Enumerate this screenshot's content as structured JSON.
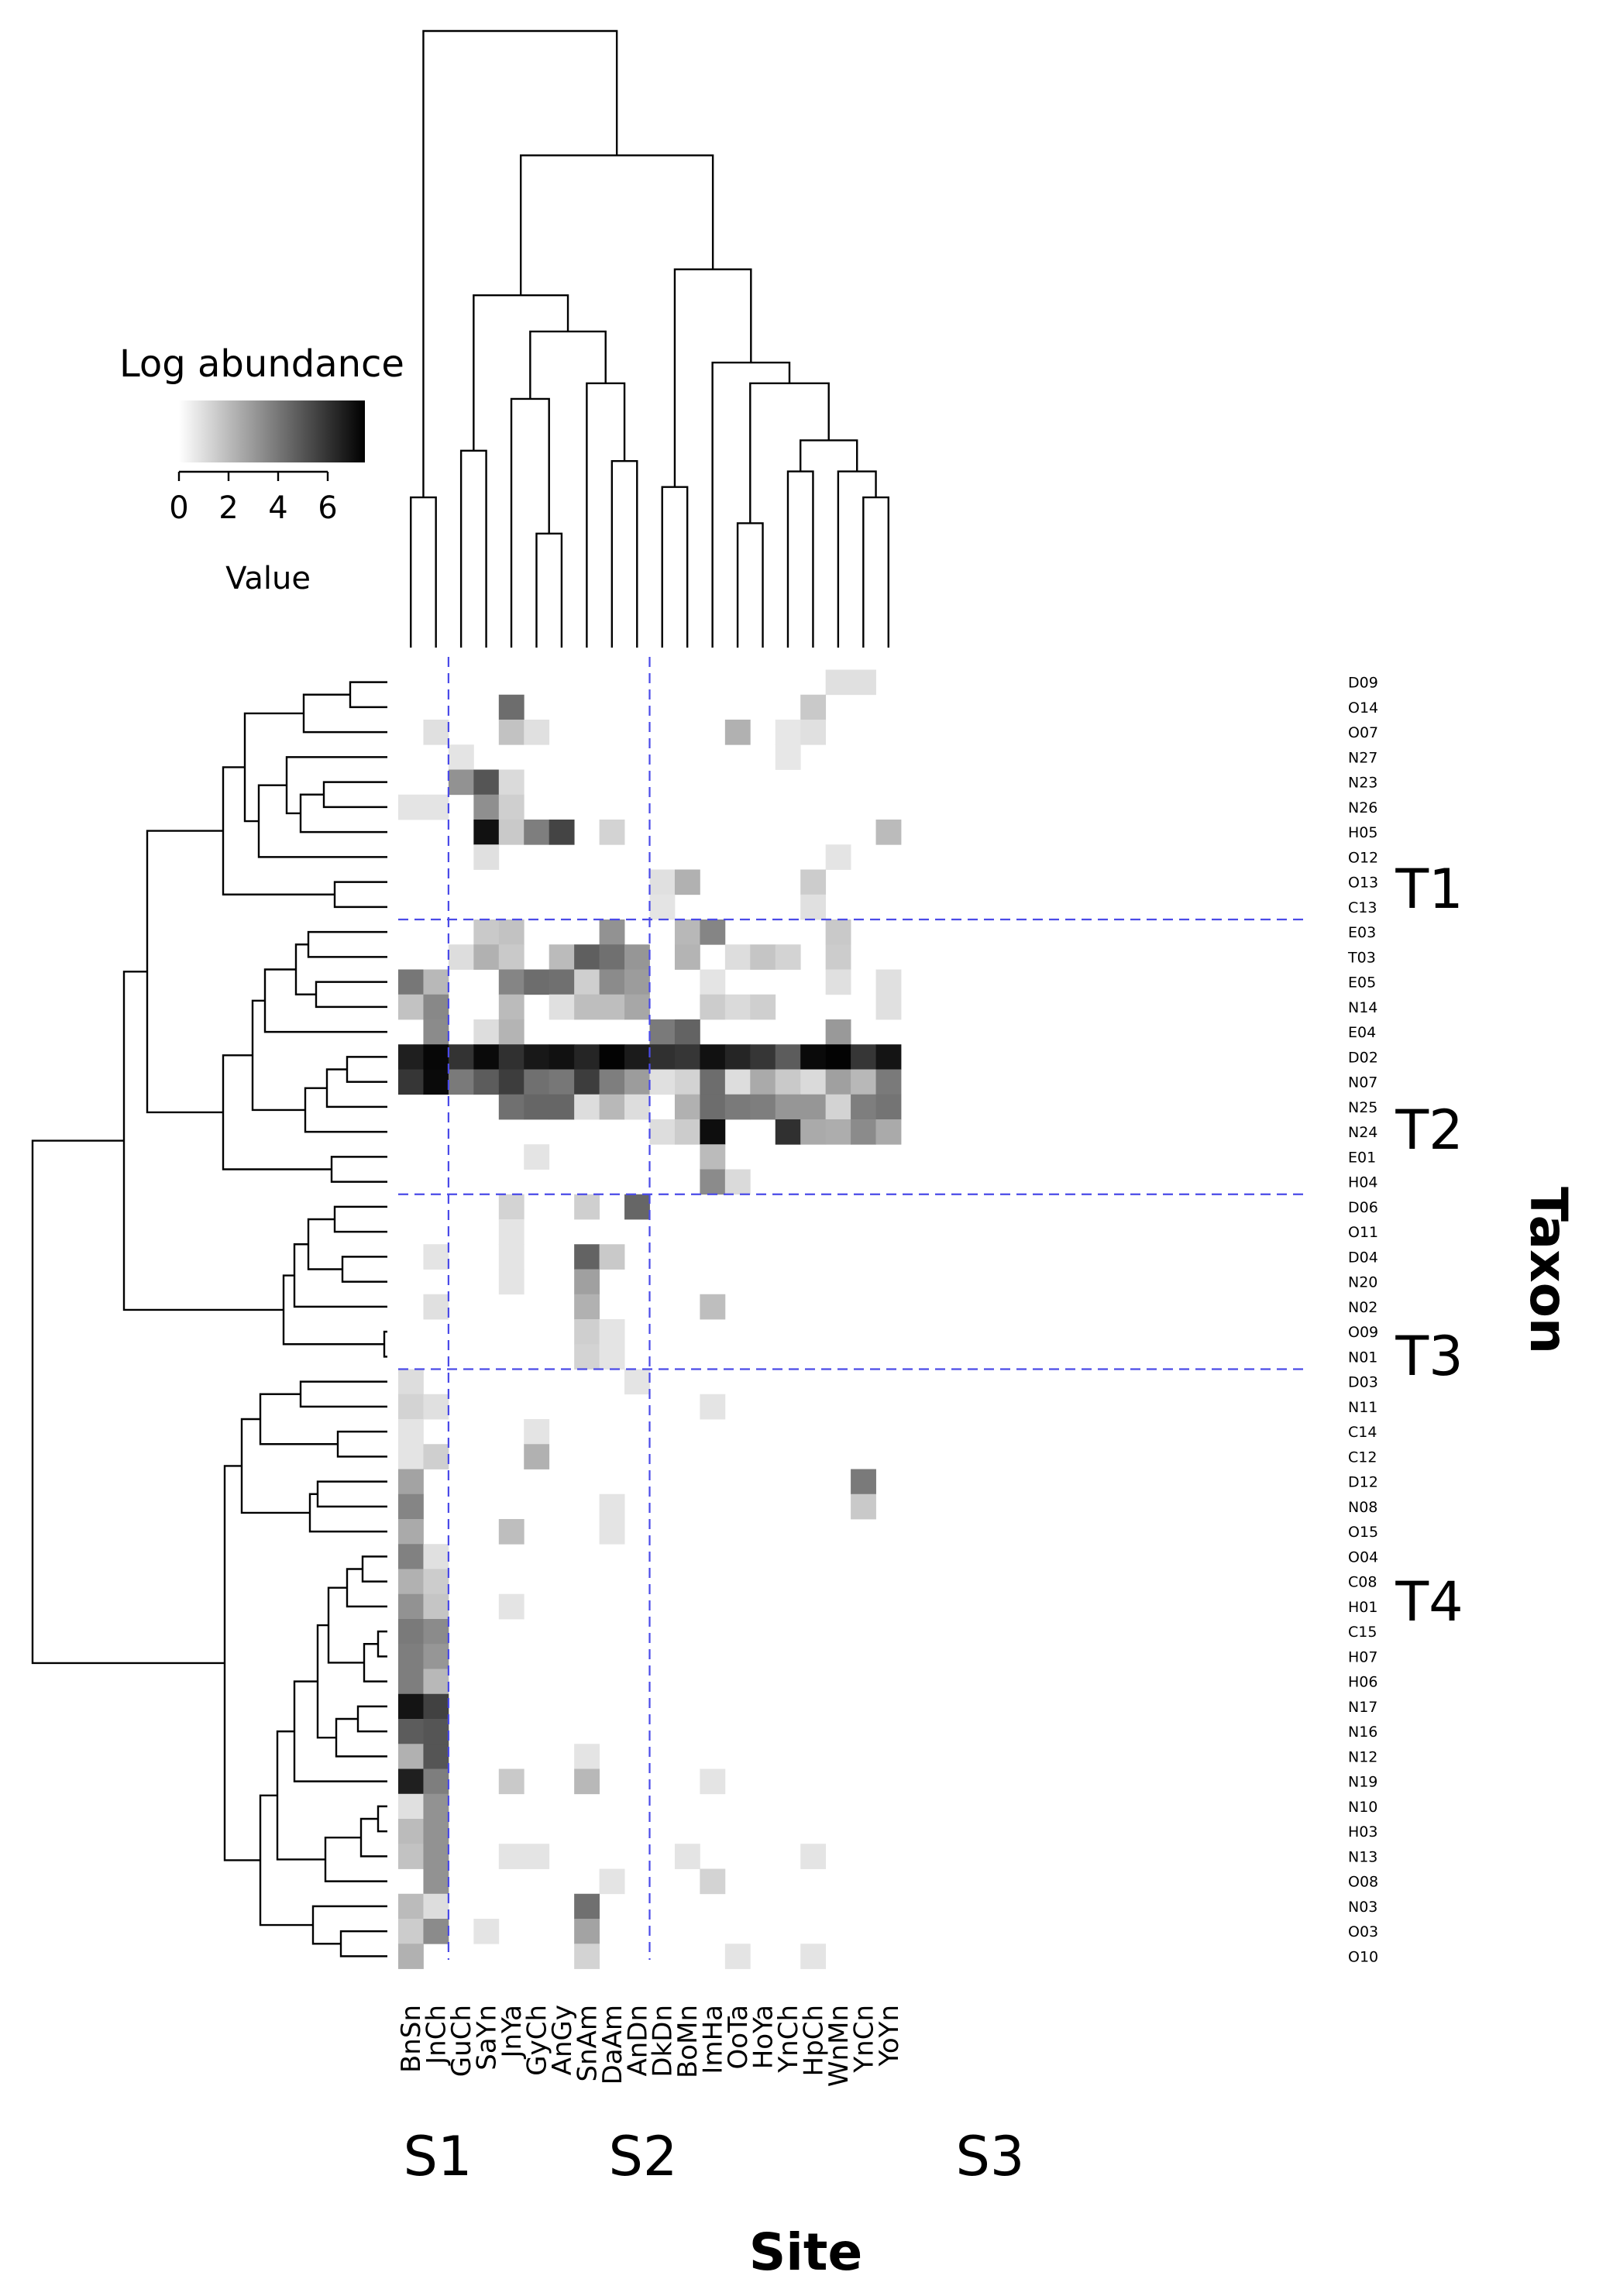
{
  "colors": {
    "low": "#ffffff",
    "high": "#000000",
    "guide": "#4a4ae8",
    "background": "#ffffff"
  },
  "key": {
    "title": "Log abundance",
    "ticks": [
      0,
      2,
      4,
      6
    ],
    "max_value": 7.5,
    "axis_label": "Value"
  },
  "chart_data": {
    "type": "heatmap",
    "title": "",
    "xlabel": "Site",
    "ylabel": "Taxon",
    "value_label": "Log abundance",
    "value_range": [
      0,
      7.5
    ],
    "columns": [
      "BnSn",
      "JnCh",
      "GuCh",
      "SaYn",
      "JnYa",
      "GyCh",
      "AnGy",
      "SnAm",
      "DaAm",
      "AnDn",
      "DkDn",
      "BoMn",
      "ImHa",
      "OoTa",
      "HoYa",
      "YnCh",
      "HpCh",
      "WnMn",
      "YnCn",
      "YoYn"
    ],
    "rows": [
      "D09",
      "O14",
      "O07",
      "N27",
      "N23",
      "N26",
      "H05",
      "O12",
      "O13",
      "C13",
      "E03",
      "T03",
      "E05",
      "N14",
      "E04",
      "D02",
      "N07",
      "N25",
      "N24",
      "E01",
      "H04",
      "D06",
      "O11",
      "D04",
      "N20",
      "N02",
      "O09",
      "N01",
      "D03",
      "N11",
      "C14",
      "C12",
      "D12",
      "N08",
      "O15",
      "O04",
      "C08",
      "H01",
      "C15",
      "H07",
      "H06",
      "N17",
      "N16",
      "N12",
      "N19",
      "N10",
      "H03",
      "N13",
      "O08",
      "N03",
      "O03",
      "O10"
    ],
    "values": [
      [
        0,
        0,
        0,
        0,
        0,
        0,
        0,
        0,
        0,
        0,
        0,
        0,
        0,
        0,
        0,
        0,
        0,
        0.9,
        0.9,
        0
      ],
      [
        0,
        0,
        0,
        0,
        4.3,
        0,
        0,
        0,
        0,
        0,
        0,
        0,
        0,
        0,
        0,
        0,
        1.6,
        0,
        0,
        0
      ],
      [
        0,
        0.9,
        0,
        0,
        1.8,
        0.9,
        0,
        0,
        0,
        0,
        0,
        0,
        0,
        2.3,
        0,
        0.7,
        0.9,
        0,
        0,
        0
      ],
      [
        0,
        0,
        0.8,
        0,
        0,
        0,
        0,
        0,
        0,
        0,
        0,
        0,
        0,
        0,
        0,
        0.7,
        0,
        0,
        0,
        0
      ],
      [
        0,
        0,
        3.2,
        5,
        1.1,
        0,
        0,
        0,
        0,
        0,
        0,
        0,
        0,
        0,
        0,
        0,
        0,
        0,
        0,
        0
      ],
      [
        0.8,
        0.8,
        0,
        3.3,
        1.4,
        0,
        0,
        0,
        0,
        0,
        0,
        0,
        0,
        0,
        0,
        0,
        0,
        0,
        0,
        0
      ],
      [
        0,
        0,
        0,
        7,
        1.6,
        3.8,
        5.5,
        0,
        1.3,
        0,
        0,
        0,
        0,
        0,
        0,
        0,
        0,
        0,
        0,
        2
      ],
      [
        0,
        0,
        0,
        0.9,
        0,
        0,
        0,
        0,
        0,
        0,
        0,
        0,
        0,
        0,
        0,
        0,
        0,
        0.8,
        0,
        0
      ],
      [
        0,
        0,
        0,
        0,
        0,
        0,
        0,
        0,
        0,
        0,
        0.9,
        2.3,
        0,
        0,
        0,
        0,
        1.5,
        0,
        0,
        0
      ],
      [
        0,
        0,
        0,
        0,
        0,
        0,
        0,
        0,
        0,
        0,
        0.8,
        0,
        0,
        0,
        0,
        0,
        0.9,
        0,
        0,
        0
      ],
      [
        0,
        0,
        0,
        1.6,
        1.8,
        0,
        0,
        0,
        3.2,
        0,
        0,
        2.1,
        3.6,
        0,
        0,
        0,
        0,
        1.6,
        0,
        0
      ],
      [
        0,
        0,
        1,
        2.3,
        1.6,
        0,
        2,
        4.7,
        4.2,
        3.1,
        0,
        2.2,
        0,
        1,
        1.7,
        1.3,
        0,
        1.5,
        0,
        0
      ],
      [
        4,
        2.1,
        0,
        0,
        3.6,
        4.3,
        4.2,
        1.4,
        3.4,
        2.9,
        0,
        0,
        0.8,
        0,
        0,
        0,
        0,
        0.9,
        0,
        0.9
      ],
      [
        1.8,
        3.5,
        0,
        0,
        2,
        0,
        0.9,
        1.9,
        1.9,
        2.6,
        0,
        0,
        1.5,
        1.1,
        1.4,
        0,
        0,
        0,
        0,
        0.9
      ],
      [
        0,
        3.4,
        0,
        1,
        2.2,
        0,
        0,
        0,
        0,
        0,
        3.9,
        4.6,
        0,
        0,
        0,
        0,
        0,
        3,
        0,
        0
      ],
      [
        6.6,
        7.3,
        6,
        7.2,
        6.1,
        6.8,
        7,
        6.4,
        7.4,
        6.7,
        6.1,
        5.9,
        7,
        6.4,
        5.9,
        4.8,
        7.2,
        7.4,
        5.9,
        6.9
      ],
      [
        5.9,
        7.2,
        3.9,
        4.8,
        5.7,
        4.2,
        4,
        5.7,
        3.8,
        2.9,
        0.9,
        1.3,
        4.3,
        1,
        2.5,
        1.6,
        1.1,
        2.8,
        2.1,
        3.9
      ],
      [
        0,
        0,
        0,
        0,
        4.2,
        4.5,
        4.5,
        1,
        2.1,
        1,
        0,
        2.3,
        4.3,
        3.9,
        3.8,
        3.1,
        3.1,
        1.3,
        3.8,
        4.1
      ],
      [
        0,
        0,
        0,
        0,
        0,
        0,
        0,
        0,
        0,
        0,
        1,
        1.5,
        7.1,
        0,
        0,
        6.1,
        2.5,
        2.4,
        3.4,
        2.5
      ],
      [
        0,
        0,
        0,
        0,
        0,
        0.8,
        0,
        0,
        0,
        0,
        0,
        0,
        2,
        0,
        0,
        0,
        0,
        0,
        0,
        0
      ],
      [
        0,
        0,
        0,
        0,
        0,
        0,
        0,
        0,
        0,
        0,
        0,
        0,
        3.4,
        1.1,
        0,
        0,
        0,
        0,
        0,
        0
      ],
      [
        0,
        0,
        0,
        0,
        1.3,
        0,
        0,
        1.4,
        0,
        4.5,
        0,
        0,
        0,
        0,
        0,
        0,
        0,
        0,
        0,
        0
      ],
      [
        0,
        0,
        0,
        0,
        0.8,
        0,
        0,
        0,
        0,
        0,
        0,
        0,
        0,
        0,
        0,
        0,
        0,
        0,
        0,
        0
      ],
      [
        0,
        0.8,
        0,
        0,
        0.8,
        0,
        0,
        4.6,
        1.6,
        0,
        0,
        0,
        0,
        0,
        0,
        0,
        0,
        0,
        0,
        0
      ],
      [
        0,
        0,
        0,
        0,
        0.8,
        0,
        0,
        2.8,
        0,
        0,
        0,
        0,
        0,
        0,
        0,
        0,
        0,
        0,
        0,
        0
      ],
      [
        0,
        0.9,
        0,
        0,
        0,
        0,
        0,
        2.3,
        0,
        0,
        0,
        0,
        1.9,
        0,
        0,
        0,
        0,
        0,
        0,
        0
      ],
      [
        0,
        0,
        0,
        0,
        0,
        0,
        0,
        1.4,
        0.8,
        0,
        0,
        0,
        0,
        0,
        0,
        0,
        0,
        0,
        0,
        0
      ],
      [
        0,
        0,
        0,
        0,
        0,
        0,
        0,
        1.3,
        0.8,
        0,
        0,
        0,
        0,
        0,
        0,
        0,
        0,
        0,
        0,
        0
      ],
      [
        1,
        0,
        0,
        0,
        0,
        0,
        0,
        0,
        0,
        0.8,
        0,
        0,
        0,
        0,
        0,
        0,
        0,
        0,
        0,
        0
      ],
      [
        1.3,
        0.9,
        0,
        0,
        0,
        0,
        0,
        0,
        0,
        0,
        0,
        0,
        0.8,
        0,
        0,
        0,
        0,
        0,
        0,
        0
      ],
      [
        0.8,
        0,
        0,
        0,
        0,
        0.8,
        0,
        0,
        0,
        0,
        0,
        0,
        0,
        0,
        0,
        0,
        0,
        0,
        0,
        0
      ],
      [
        0.8,
        1.4,
        0,
        0,
        0,
        2.3,
        0,
        0,
        0,
        0,
        0,
        0,
        0,
        0,
        0,
        0,
        0,
        0,
        0,
        0
      ],
      [
        2.7,
        0,
        0,
        0,
        0,
        0,
        0,
        0,
        0,
        0,
        0,
        0,
        0,
        0,
        0,
        0,
        0,
        0,
        3.9,
        0
      ],
      [
        3.6,
        0,
        0,
        0,
        0,
        0,
        0,
        0,
        0.8,
        0,
        0,
        0,
        0,
        0,
        0,
        0,
        0,
        0,
        1.6,
        0
      ],
      [
        2.5,
        0,
        0,
        0,
        1.9,
        0,
        0,
        0,
        0.8,
        0,
        0,
        0,
        0,
        0,
        0,
        0,
        0,
        0,
        0,
        0
      ],
      [
        3.7,
        0.9,
        0,
        0,
        0,
        0,
        0,
        0,
        0,
        0,
        0,
        0,
        0,
        0,
        0,
        0,
        0,
        0,
        0,
        0
      ],
      [
        2.3,
        1.5,
        0,
        0,
        0,
        0,
        0,
        0,
        0,
        0,
        0,
        0,
        0,
        0,
        0,
        0,
        0,
        0,
        0,
        0
      ],
      [
        3.2,
        1.7,
        0,
        0,
        0.8,
        0,
        0,
        0,
        0,
        0,
        0,
        0,
        0,
        0,
        0,
        0,
        0,
        0,
        0,
        0
      ],
      [
        3.9,
        3.4,
        0,
        0,
        0,
        0,
        0,
        0,
        0,
        0,
        0,
        0,
        0,
        0,
        0,
        0,
        0,
        0,
        0,
        0
      ],
      [
        3.8,
        3.1,
        0,
        0,
        0,
        0,
        0,
        0,
        0,
        0,
        0,
        0,
        0,
        0,
        0,
        0,
        0,
        0,
        0,
        0
      ],
      [
        3.8,
        2.1,
        0,
        0,
        0,
        0,
        0,
        0,
        0,
        0,
        0,
        0,
        0,
        0,
        0,
        0,
        0,
        0,
        0,
        0
      ],
      [
        6.9,
        5.6,
        0,
        0,
        0,
        0,
        0,
        0,
        0,
        0,
        0,
        0,
        0,
        0,
        0,
        0,
        0,
        0,
        0,
        0
      ],
      [
        4.8,
        5,
        0,
        0,
        0,
        0,
        0,
        0,
        0,
        0,
        0,
        0,
        0,
        0,
        0,
        0,
        0,
        0,
        0,
        0
      ],
      [
        2.3,
        5,
        0,
        0,
        0,
        0,
        0,
        0.8,
        0,
        0,
        0,
        0,
        0,
        0,
        0,
        0,
        0,
        0,
        0,
        0
      ],
      [
        6.6,
        3.8,
        0,
        0,
        1.6,
        0,
        0,
        2.1,
        0,
        0,
        0,
        0,
        0.8,
        0,
        0,
        0,
        0,
        0,
        0,
        0
      ],
      [
        0.9,
        3.2,
        0,
        0,
        0,
        0,
        0,
        0,
        0,
        0,
        0,
        0,
        0,
        0,
        0,
        0,
        0,
        0,
        0,
        0
      ],
      [
        2,
        3.2,
        0,
        0,
        0,
        0,
        0,
        0,
        0,
        0,
        0,
        0,
        0,
        0,
        0,
        0,
        0,
        0,
        0,
        0
      ],
      [
        1.8,
        3.2,
        0,
        0,
        0.8,
        0.8,
        0,
        0,
        0,
        0,
        0,
        0.8,
        0,
        0,
        0,
        0,
        0.8,
        0,
        0,
        0
      ],
      [
        0,
        3.2,
        0,
        0,
        0,
        0,
        0,
        0,
        0.8,
        0,
        0,
        0,
        1.3,
        0,
        0,
        0,
        0,
        0,
        0,
        0
      ],
      [
        2,
        1,
        0,
        0,
        0,
        0,
        0,
        4.2,
        0,
        0,
        0,
        0,
        0,
        0,
        0,
        0,
        0,
        0,
        0,
        0
      ],
      [
        1.5,
        3.4,
        0,
        0.8,
        0,
        0,
        0,
        2.7,
        0,
        0,
        0,
        0,
        0,
        0,
        0,
        0,
        0,
        0,
        0,
        0
      ],
      [
        2.3,
        0,
        0,
        0,
        0,
        0,
        0,
        1.3,
        0,
        0,
        0,
        0,
        0,
        0.8,
        0,
        0,
        0.8,
        0,
        0,
        0
      ]
    ],
    "column_groups": [
      {
        "label": "S1",
        "columns": [
          "BnSn",
          "JnCh"
        ]
      },
      {
        "label": "S2",
        "columns": [
          "GuCh",
          "SaYn",
          "JnYa",
          "GyCh",
          "AnGy",
          "SnAm",
          "DaAm",
          "AnDn"
        ]
      },
      {
        "label": "S3",
        "columns": [
          "DkDn",
          "BoMn",
          "ImHa",
          "OoTa",
          "HoYa",
          "YnCh",
          "HpCh",
          "WnMn",
          "YnCn",
          "YoYn"
        ]
      }
    ],
    "row_groups": [
      {
        "label": "T1",
        "rows": [
          "D09",
          "O14",
          "O07",
          "N27",
          "N23",
          "N26",
          "H05",
          "O12",
          "O13",
          "C13"
        ]
      },
      {
        "label": "T2",
        "rows": [
          "E03",
          "T03",
          "E05",
          "N14",
          "E04",
          "D02",
          "N07",
          "N25",
          "N24",
          "E01",
          "H04"
        ]
      },
      {
        "label": "T3",
        "rows": [
          "D06",
          "O11",
          "D04",
          "N20",
          "N02",
          "O09",
          "N01"
        ]
      },
      {
        "label": "T4",
        "rows": [
          "D03",
          "N11",
          "C14",
          "C12",
          "D12",
          "N08",
          "O15",
          "O04",
          "C08",
          "H01",
          "C15",
          "H07",
          "H06",
          "N17",
          "N16",
          "N12",
          "N19",
          "N10",
          "H03",
          "N13",
          "O08",
          "N03",
          "O03",
          "O10"
        ]
      }
    ],
    "column_dendrogram": {
      "merges": [
        [
          "BnSn",
          "JnCh",
          0.29
        ],
        [
          "GyCh",
          "AnGy",
          0.22
        ],
        [
          "JnYa",
          "C(GyCh,AnGy)",
          0.48
        ],
        [
          "DaAm",
          "AnDn",
          0.36
        ],
        [
          "SnAm",
          "C(DaAm,AnDn)",
          0.51
        ],
        [
          "C(JnYa..)",
          "C(SnAm..)",
          0.61
        ],
        [
          "GuCh",
          "SaYn",
          0.38
        ],
        [
          "C(GuCh,SaYn)",
          "C(JnYa..SnAm..)",
          0.68
        ],
        [
          "DkDn",
          "BoMn",
          0.31
        ],
        [
          "OoTa",
          "HoYa",
          0.24
        ],
        [
          "YnCn",
          "YoYn",
          0.29
        ],
        [
          "WnMn",
          "C(YnCn,YoYn)",
          0.34
        ],
        [
          "YnCh",
          "HpCh",
          0.34
        ],
        [
          "C(YnCh,HpCh)",
          "C(WnMn..)",
          0.4
        ],
        [
          "C(OoTa,HoYa)",
          "C(YnCh..)",
          0.51
        ],
        [
          "ImHa",
          "C(OoTa..)",
          0.55
        ],
        [
          "C(DkDn,BoMn)",
          "C(ImHa..)",
          0.73
        ],
        [
          "S2-cluster",
          "S3-cluster",
          0.95
        ],
        [
          "S1-cluster",
          "S2S3-cluster",
          1.19
        ]
      ]
    }
  }
}
